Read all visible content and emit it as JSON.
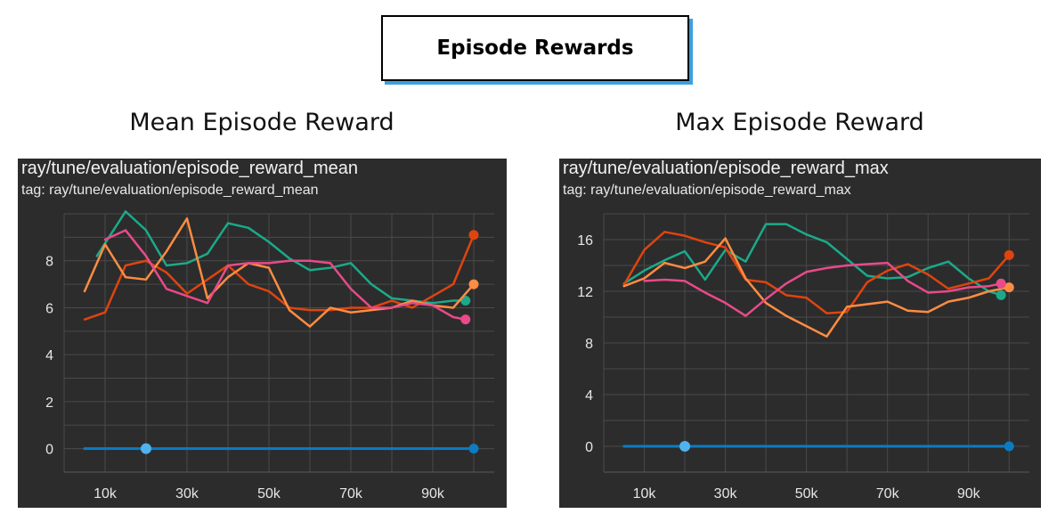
{
  "header": {
    "title": "Episode Rewards"
  },
  "panels": [
    {
      "caption": "Mean Episode Reward",
      "title": "ray/tune/evaluation/episode_reward_mean",
      "tag": "tag: ray/tune/evaluation/episode_reward_mean"
    },
    {
      "caption": "Max Episode Reward",
      "title": "ray/tune/evaluation/episode_reward_max",
      "tag": "tag: ray/tune/evaluation/episode_reward_max"
    }
  ],
  "colors": {
    "background": "#2c2c2c",
    "grid": "#4a4a4a",
    "teal": "#1aaa8a",
    "orange_red": "#e0440e",
    "orange": "#ff8c42",
    "pink": "#e84a8a",
    "blue": "#0c7bc2",
    "light_blue": "#4fb3f0"
  },
  "chart_data": [
    {
      "type": "line",
      "title": "ray/tune/evaluation/episode_reward_mean",
      "xlim": [
        0,
        105000
      ],
      "ylim": [
        -1,
        10
      ],
      "x_ticks": [
        10000,
        30000,
        50000,
        70000,
        90000
      ],
      "x_tick_labels": [
        "10k",
        "30k",
        "50k",
        "70k",
        "90k"
      ],
      "y_ticks": [
        0,
        2,
        4,
        6,
        8
      ],
      "y_tick_labels": [
        "0",
        "2",
        "4",
        "6",
        "8"
      ],
      "grid": true,
      "series": [
        {
          "color": "#1aaa8a",
          "x": [
            8000,
            15000,
            20000,
            25000,
            30000,
            35000,
            40000,
            45000,
            50000,
            55000,
            60000,
            65000,
            70000,
            75000,
            80000,
            85000,
            90000,
            95000,
            98000
          ],
          "y": [
            8.2,
            10.1,
            9.3,
            7.8,
            7.9,
            8.3,
            9.6,
            9.4,
            8.8,
            8.1,
            7.6,
            7.7,
            7.9,
            7.0,
            6.4,
            6.3,
            6.2,
            6.3,
            6.3
          ]
        },
        {
          "color": "#e0440e",
          "x": [
            5000,
            10000,
            15000,
            20000,
            25000,
            30000,
            35000,
            40000,
            45000,
            50000,
            55000,
            60000,
            65000,
            70000,
            75000,
            80000,
            85000,
            90000,
            95000,
            100000
          ],
          "y": [
            5.5,
            5.8,
            7.8,
            8.0,
            7.5,
            6.6,
            7.2,
            7.8,
            7.0,
            6.7,
            6.0,
            5.9,
            5.9,
            6.0,
            6.0,
            6.3,
            6.0,
            6.5,
            7.0,
            9.1
          ]
        },
        {
          "color": "#ff8c42",
          "x": [
            5000,
            10000,
            15000,
            20000,
            25000,
            30000,
            35000,
            40000,
            45000,
            50000,
            55000,
            60000,
            65000,
            70000,
            75000,
            80000,
            85000,
            90000,
            95000,
            100000
          ],
          "y": [
            6.7,
            8.7,
            7.3,
            7.2,
            8.4,
            9.8,
            6.4,
            7.3,
            7.9,
            7.7,
            5.9,
            5.2,
            6.0,
            5.8,
            5.9,
            6.0,
            6.3,
            6.1,
            6.0,
            7.0
          ]
        },
        {
          "color": "#e84a8a",
          "x": [
            10000,
            15000,
            20000,
            25000,
            30000,
            35000,
            40000,
            45000,
            50000,
            55000,
            60000,
            65000,
            70000,
            75000,
            80000,
            85000,
            90000,
            95000,
            98000
          ],
          "y": [
            8.9,
            9.3,
            8.2,
            6.8,
            6.5,
            6.2,
            7.8,
            7.9,
            7.9,
            8.0,
            8.0,
            7.9,
            6.8,
            6.0,
            6.0,
            6.2,
            6.1,
            5.6,
            5.5
          ]
        },
        {
          "color": "#0c7bc2",
          "x": [
            5000,
            20000,
            100000
          ],
          "y": [
            0,
            0,
            0
          ]
        }
      ]
    },
    {
      "type": "line",
      "title": "ray/tune/evaluation/episode_reward_max",
      "xlim": [
        0,
        105000
      ],
      "ylim": [
        -2,
        18
      ],
      "x_ticks": [
        10000,
        30000,
        50000,
        70000,
        90000
      ],
      "x_tick_labels": [
        "10k",
        "30k",
        "50k",
        "70k",
        "90k"
      ],
      "y_ticks": [
        0,
        4,
        8,
        12,
        16
      ],
      "y_tick_labels": [
        "0",
        "4",
        "8",
        "12",
        "16"
      ],
      "grid": true,
      "series": [
        {
          "color": "#1aaa8a",
          "x": [
            5000,
            10000,
            15000,
            20000,
            25000,
            30000,
            35000,
            40000,
            45000,
            50000,
            55000,
            60000,
            65000,
            70000,
            75000,
            80000,
            85000,
            90000,
            95000,
            98000
          ],
          "y": [
            12.6,
            13.6,
            14.4,
            15.1,
            12.9,
            15.2,
            14.3,
            17.2,
            17.2,
            16.4,
            15.8,
            14.5,
            13.2,
            13.0,
            13.1,
            13.8,
            14.3,
            13.0,
            12.0,
            11.7
          ]
        },
        {
          "color": "#e0440e",
          "x": [
            5000,
            10000,
            15000,
            20000,
            25000,
            30000,
            35000,
            40000,
            45000,
            50000,
            55000,
            60000,
            65000,
            70000,
            75000,
            80000,
            85000,
            90000,
            95000,
            100000
          ],
          "y": [
            12.5,
            15.2,
            16.6,
            16.3,
            15.8,
            15.4,
            12.9,
            12.7,
            11.7,
            11.5,
            10.3,
            10.4,
            12.7,
            13.6,
            14.1,
            13.3,
            12.2,
            12.6,
            13.0,
            14.8
          ]
        },
        {
          "color": "#ff8c42",
          "x": [
            5000,
            10000,
            15000,
            20000,
            25000,
            30000,
            35000,
            40000,
            45000,
            50000,
            55000,
            60000,
            65000,
            70000,
            75000,
            80000,
            85000,
            90000,
            95000,
            100000
          ],
          "y": [
            12.4,
            13.0,
            14.2,
            13.8,
            14.3,
            16.1,
            13.0,
            11.1,
            10.1,
            9.3,
            8.5,
            10.8,
            11.0,
            11.2,
            10.5,
            10.4,
            11.2,
            11.5,
            12.0,
            12.3
          ]
        },
        {
          "color": "#e84a8a",
          "x": [
            10000,
            15000,
            20000,
            25000,
            30000,
            35000,
            40000,
            45000,
            50000,
            55000,
            60000,
            65000,
            70000,
            75000,
            80000,
            85000,
            90000,
            95000,
            98000
          ],
          "y": [
            12.8,
            12.9,
            12.8,
            11.9,
            11.1,
            10.1,
            11.4,
            12.6,
            13.5,
            13.8,
            14.0,
            14.1,
            14.2,
            12.8,
            11.9,
            12.0,
            12.3,
            12.4,
            12.6
          ]
        },
        {
          "color": "#0c7bc2",
          "x": [
            5000,
            20000,
            100000
          ],
          "y": [
            0,
            0,
            0
          ]
        }
      ]
    }
  ]
}
